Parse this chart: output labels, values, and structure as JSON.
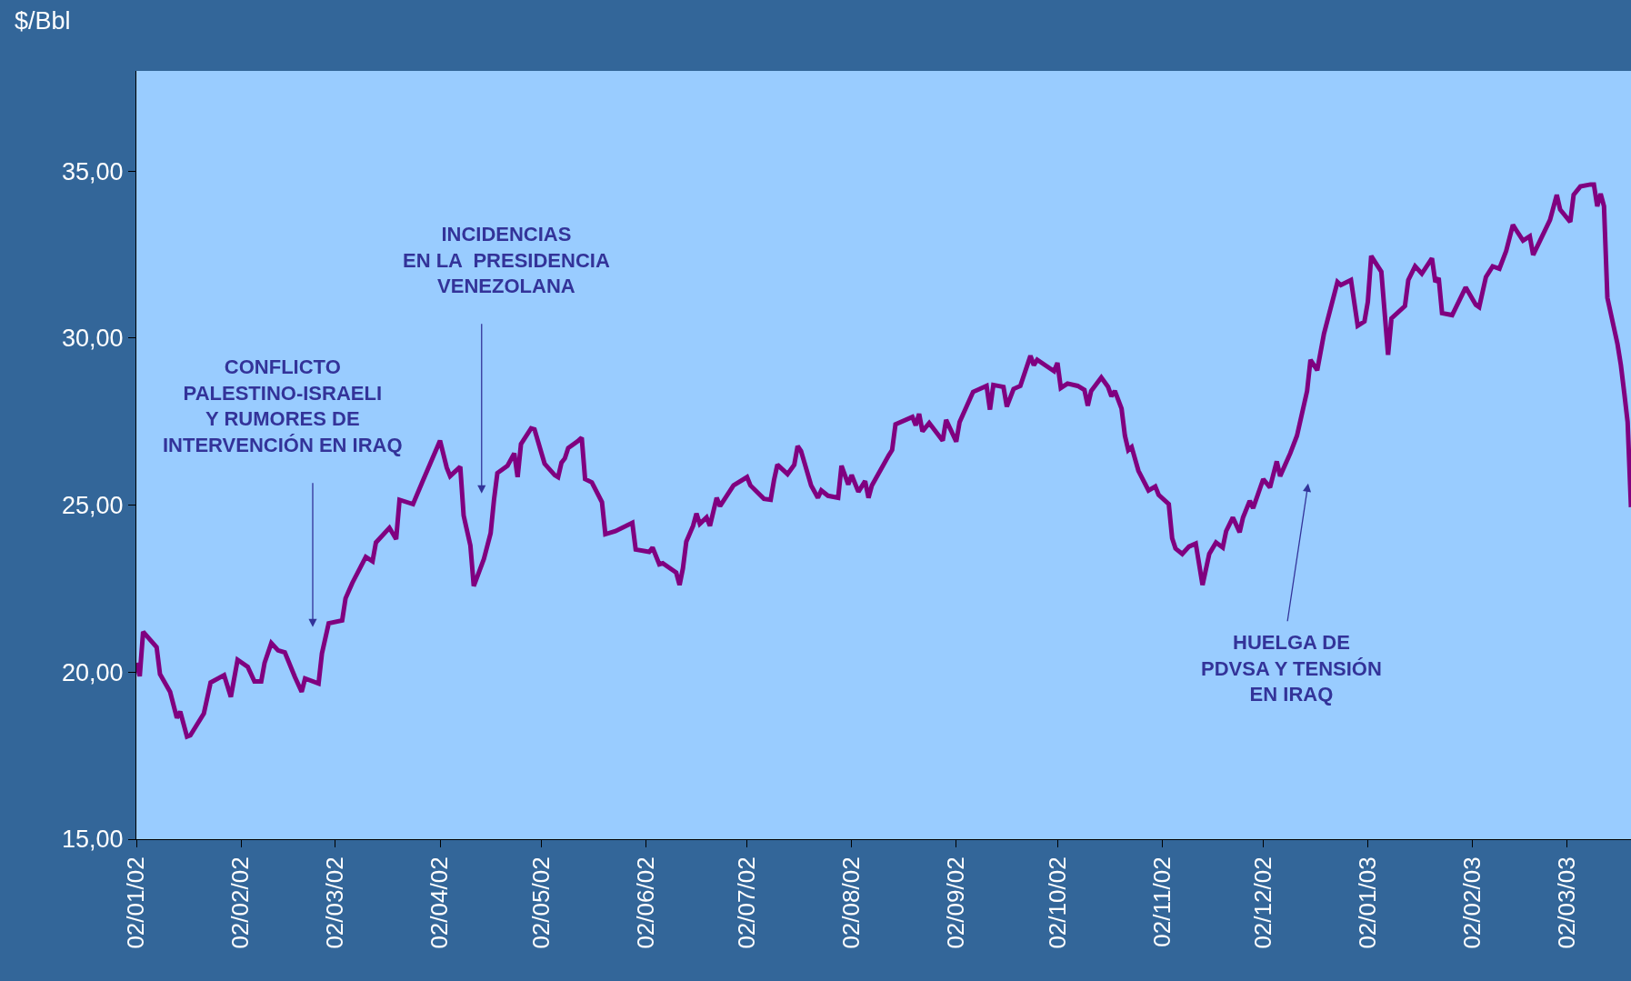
{
  "chart_data": {
    "type": "line",
    "ylabel": "$/Bbl",
    "x": [
      "2002-01-02",
      "2002-01-03",
      "2002-01-04",
      "2002-01-08",
      "2002-01-09",
      "2002-01-12",
      "2002-01-14",
      "2002-01-15",
      "2002-01-17",
      "2002-01-18",
      "2002-01-22",
      "2002-01-24",
      "2002-01-28",
      "2002-01-30",
      "2002-02-01",
      "2002-02-04",
      "2002-02-06",
      "2002-02-08",
      "2002-02-09",
      "2002-02-11",
      "2002-02-13",
      "2002-02-15",
      "2002-02-18",
      "2002-02-20",
      "2002-02-21",
      "2002-02-25",
      "2002-02-26",
      "2002-02-28",
      "2002-03-04",
      "2002-03-05",
      "2002-03-07",
      "2002-03-11",
      "2002-03-13",
      "2002-03-14",
      "2002-03-18",
      "2002-03-20",
      "2002-03-21",
      "2002-03-25",
      "2002-03-28",
      "2002-04-02",
      "2002-04-04",
      "2002-04-05",
      "2002-04-08",
      "2002-04-09",
      "2002-04-11",
      "2002-04-12",
      "2002-04-15",
      "2002-04-17",
      "2002-04-18",
      "2002-04-19",
      "2002-04-22",
      "2002-04-24",
      "2002-04-25",
      "2002-04-26",
      "2002-04-29",
      "2002-04-30",
      "2002-05-02",
      "2002-05-03",
      "2002-05-06",
      "2002-05-07",
      "2002-05-08",
      "2002-05-09",
      "2002-05-10",
      "2002-05-13",
      "2002-05-14",
      "2002-05-15",
      "2002-05-17",
      "2002-05-20",
      "2002-05-21",
      "2002-05-24",
      "2002-05-29",
      "2002-05-30",
      "2002-06-03",
      "2002-06-04",
      "2002-06-06",
      "2002-06-07",
      "2002-06-11",
      "2002-06-12",
      "2002-06-13",
      "2002-06-14",
      "2002-06-16",
      "2002-06-17",
      "2002-06-18",
      "2002-06-20",
      "2002-06-21",
      "2002-06-23",
      "2002-06-24",
      "2002-06-28",
      "2002-07-02",
      "2002-07-03",
      "2002-07-07",
      "2002-07-09",
      "2002-07-10",
      "2002-07-11",
      "2002-07-14",
      "2002-07-16",
      "2002-07-17",
      "2002-07-18",
      "2002-07-21",
      "2002-07-23",
      "2002-07-24",
      "2002-07-26",
      "2002-07-29",
      "2002-07-30",
      "2002-08-01",
      "2002-08-02",
      "2002-08-04",
      "2002-08-06",
      "2002-08-07",
      "2002-08-08",
      "2002-08-13",
      "2002-08-14",
      "2002-08-15",
      "2002-08-20",
      "2002-08-21",
      "2002-08-22",
      "2002-08-23",
      "2002-08-25",
      "2002-08-29",
      "2002-08-30",
      "2002-09-02",
      "2002-09-03",
      "2002-09-07",
      "2002-09-11",
      "2002-09-12",
      "2002-09-13",
      "2002-09-16",
      "2002-09-17",
      "2002-09-19",
      "2002-09-21",
      "2002-09-24",
      "2002-09-25",
      "2002-09-26",
      "2002-10-01",
      "2002-10-02",
      "2002-10-03",
      "2002-10-05",
      "2002-10-08",
      "2002-10-10",
      "2002-10-11",
      "2002-10-12",
      "2002-10-15",
      "2002-10-17",
      "2002-10-18",
      "2002-10-19",
      "2002-10-21",
      "2002-10-22",
      "2002-10-23",
      "2002-10-24",
      "2002-10-26",
      "2002-10-29",
      "2002-10-31",
      "2002-11-01",
      "2002-11-04",
      "2002-11-05",
      "2002-11-06",
      "2002-11-08",
      "2002-11-10",
      "2002-11-12",
      "2002-11-14",
      "2002-11-16",
      "2002-11-18",
      "2002-11-20",
      "2002-11-21",
      "2002-11-23",
      "2002-11-25",
      "2002-11-26",
      "2002-11-28",
      "2002-11-29",
      "2002-12-02",
      "2002-12-04",
      "2002-12-06",
      "2002-12-07",
      "2002-12-10",
      "2002-12-12",
      "2002-12-15",
      "2002-12-16",
      "2002-12-18",
      "2002-12-20",
      "2002-12-24",
      "2002-12-25",
      "2002-12-28",
      "2002-12-30",
      "2003-01-01",
      "2003-01-02",
      "2003-01-03",
      "2003-01-06",
      "2003-01-08",
      "2003-01-09",
      "2003-01-13",
      "2003-01-14",
      "2003-01-16",
      "2003-01-18",
      "2003-01-21",
      "2003-01-22",
      "2003-01-23",
      "2003-01-24",
      "2003-01-27",
      "2003-01-31",
      "2003-02-03",
      "2003-02-04",
      "2003-02-06",
      "2003-02-08",
      "2003-02-10",
      "2003-02-12",
      "2003-02-14",
      "2003-02-15",
      "2003-02-17",
      "2003-02-19",
      "2003-02-20",
      "2003-02-25",
      "2003-02-27",
      "2003-02-28",
      "2003-03-03",
      "2003-03-04",
      "2003-03-06",
      "2003-03-09",
      "2003-03-10",
      "2003-03-11",
      "2003-03-12",
      "2003-03-13",
      "2003-03-14",
      "2003-03-17",
      "2003-03-18",
      "2003-03-19",
      "2003-03-20",
      "2003-03-21"
    ],
    "series": [
      {
        "color": "#800080",
        "values": [
          20.28,
          19.88,
          21.21,
          20.75,
          19.94,
          19.41,
          18.63,
          18.82,
          18.07,
          18.11,
          18.76,
          19.69,
          19.91,
          19.26,
          20.37,
          20.16,
          19.72,
          19.72,
          20.28,
          20.87,
          20.65,
          20.59,
          19.85,
          19.41,
          19.81,
          19.66,
          20.56,
          21.46,
          21.55,
          22.21,
          22.67,
          23.45,
          23.32,
          23.88,
          24.32,
          23.98,
          25.16,
          25.03,
          25.75,
          26.93,
          26.12,
          25.87,
          26.15,
          24.69,
          23.79,
          22.58,
          23.39,
          24.16,
          25.16,
          25.96,
          26.18,
          26.55,
          25.84,
          26.83,
          27.3,
          27.27,
          26.58,
          26.24,
          25.9,
          25.84,
          26.27,
          26.4,
          26.71,
          26.93,
          27.02,
          25.78,
          25.68,
          25.09,
          24.13,
          24.22,
          24.47,
          23.67,
          23.6,
          23.73,
          23.23,
          23.26,
          22.98,
          22.61,
          23.11,
          23.91,
          24.38,
          24.75,
          24.44,
          24.63,
          24.38,
          25.22,
          24.97,
          25.59,
          25.84,
          25.59,
          25.19,
          25.16,
          25.75,
          26.21,
          25.93,
          26.21,
          26.77,
          26.62,
          25.59,
          25.22,
          25.44,
          25.28,
          25.22,
          26.18,
          25.62,
          25.9,
          25.4,
          25.72,
          25.22,
          25.59,
          26.49,
          26.65,
          27.42,
          27.64,
          27.39,
          27.73,
          27.21,
          27.46,
          26.93,
          27.55,
          26.9,
          27.49,
          28.39,
          28.57,
          27.86,
          28.6,
          28.54,
          27.95,
          28.48,
          28.57,
          29.47,
          29.19,
          29.35,
          29.01,
          29.26,
          28.51,
          28.64,
          28.57,
          28.45,
          27.98,
          28.42,
          28.82,
          28.54,
          28.26,
          28.42,
          27.89,
          27.08,
          26.65,
          26.74,
          26.03,
          25.44,
          25.56,
          25.31,
          25.03,
          24.01,
          23.7,
          23.54,
          23.76,
          23.85,
          22.61,
          23.54,
          23.88,
          23.73,
          24.22,
          24.63,
          24.19,
          24.63,
          25.13,
          24.91,
          25.78,
          25.53,
          26.31,
          25.87,
          26.55,
          27.08,
          28.42,
          29.35,
          29.04,
          30.13,
          31.68,
          31.59,
          31.74,
          30.37,
          30.5,
          31.09,
          32.46,
          31.99,
          29.5,
          30.59,
          30.96,
          31.74,
          32.15,
          31.93,
          32.39,
          31.68,
          31.8,
          30.75,
          30.69,
          31.52,
          31.0,
          30.93,
          31.83,
          32.15,
          32.08,
          32.61,
          33.39,
          33.23,
          32.92,
          33.05,
          32.49,
          33.54,
          34.29,
          33.85,
          33.48,
          34.29,
          34.54,
          34.6,
          34.6,
          33.95,
          34.32,
          33.95,
          31.21,
          29.82,
          29.19,
          28.36,
          27.49,
          24.94
        ]
      }
    ],
    "xlim": [
      "2002-01-02",
      "2003-03-21"
    ],
    "xticks": [
      {
        "value": "2002-01-02",
        "label": "02/01/02"
      },
      {
        "value": "2002-02-02",
        "label": "02/02/02"
      },
      {
        "value": "2002-03-02",
        "label": "02/03/02"
      },
      {
        "value": "2002-04-02",
        "label": "02/04/02"
      },
      {
        "value": "2002-05-02",
        "label": "02/05/02"
      },
      {
        "value": "2002-06-02",
        "label": "02/06/02"
      },
      {
        "value": "2002-07-02",
        "label": "02/07/02"
      },
      {
        "value": "2002-08-02",
        "label": "02/08/02"
      },
      {
        "value": "2002-09-02",
        "label": "02/09/02"
      },
      {
        "value": "2002-10-02",
        "label": "02/10/02"
      },
      {
        "value": "2002-11-02",
        "label": "02/11/02"
      },
      {
        "value": "2002-12-02",
        "label": "02/12/02"
      },
      {
        "value": "2003-01-02",
        "label": "02/01/03"
      },
      {
        "value": "2003-02-02",
        "label": "02/02/03"
      },
      {
        "value": "2003-03-02",
        "label": "02/03/03"
      }
    ],
    "ylim": [
      15,
      38
    ],
    "yticks": [
      {
        "value": 15,
        "label": "15,00"
      },
      {
        "value": 20,
        "label": "20,00"
      },
      {
        "value": 25,
        "label": "25,00"
      },
      {
        "value": 30,
        "label": "30,00"
      },
      {
        "value": 35,
        "label": "35,00"
      }
    ],
    "grid": false,
    "marker": "none",
    "line_style": "solid",
    "annotations": [
      "CONFLICTO\nPALESTINO-ISRAELI\nY RUMORES DE\nINTERVENCIÓN EN IRAQ",
      "INCIDENCIAS\nEN LA  PRESIDENCIA\nVENEZOLANA",
      "HUELGA DE\nPDVSA Y TENSIÓN\nEN IRAQ"
    ]
  }
}
